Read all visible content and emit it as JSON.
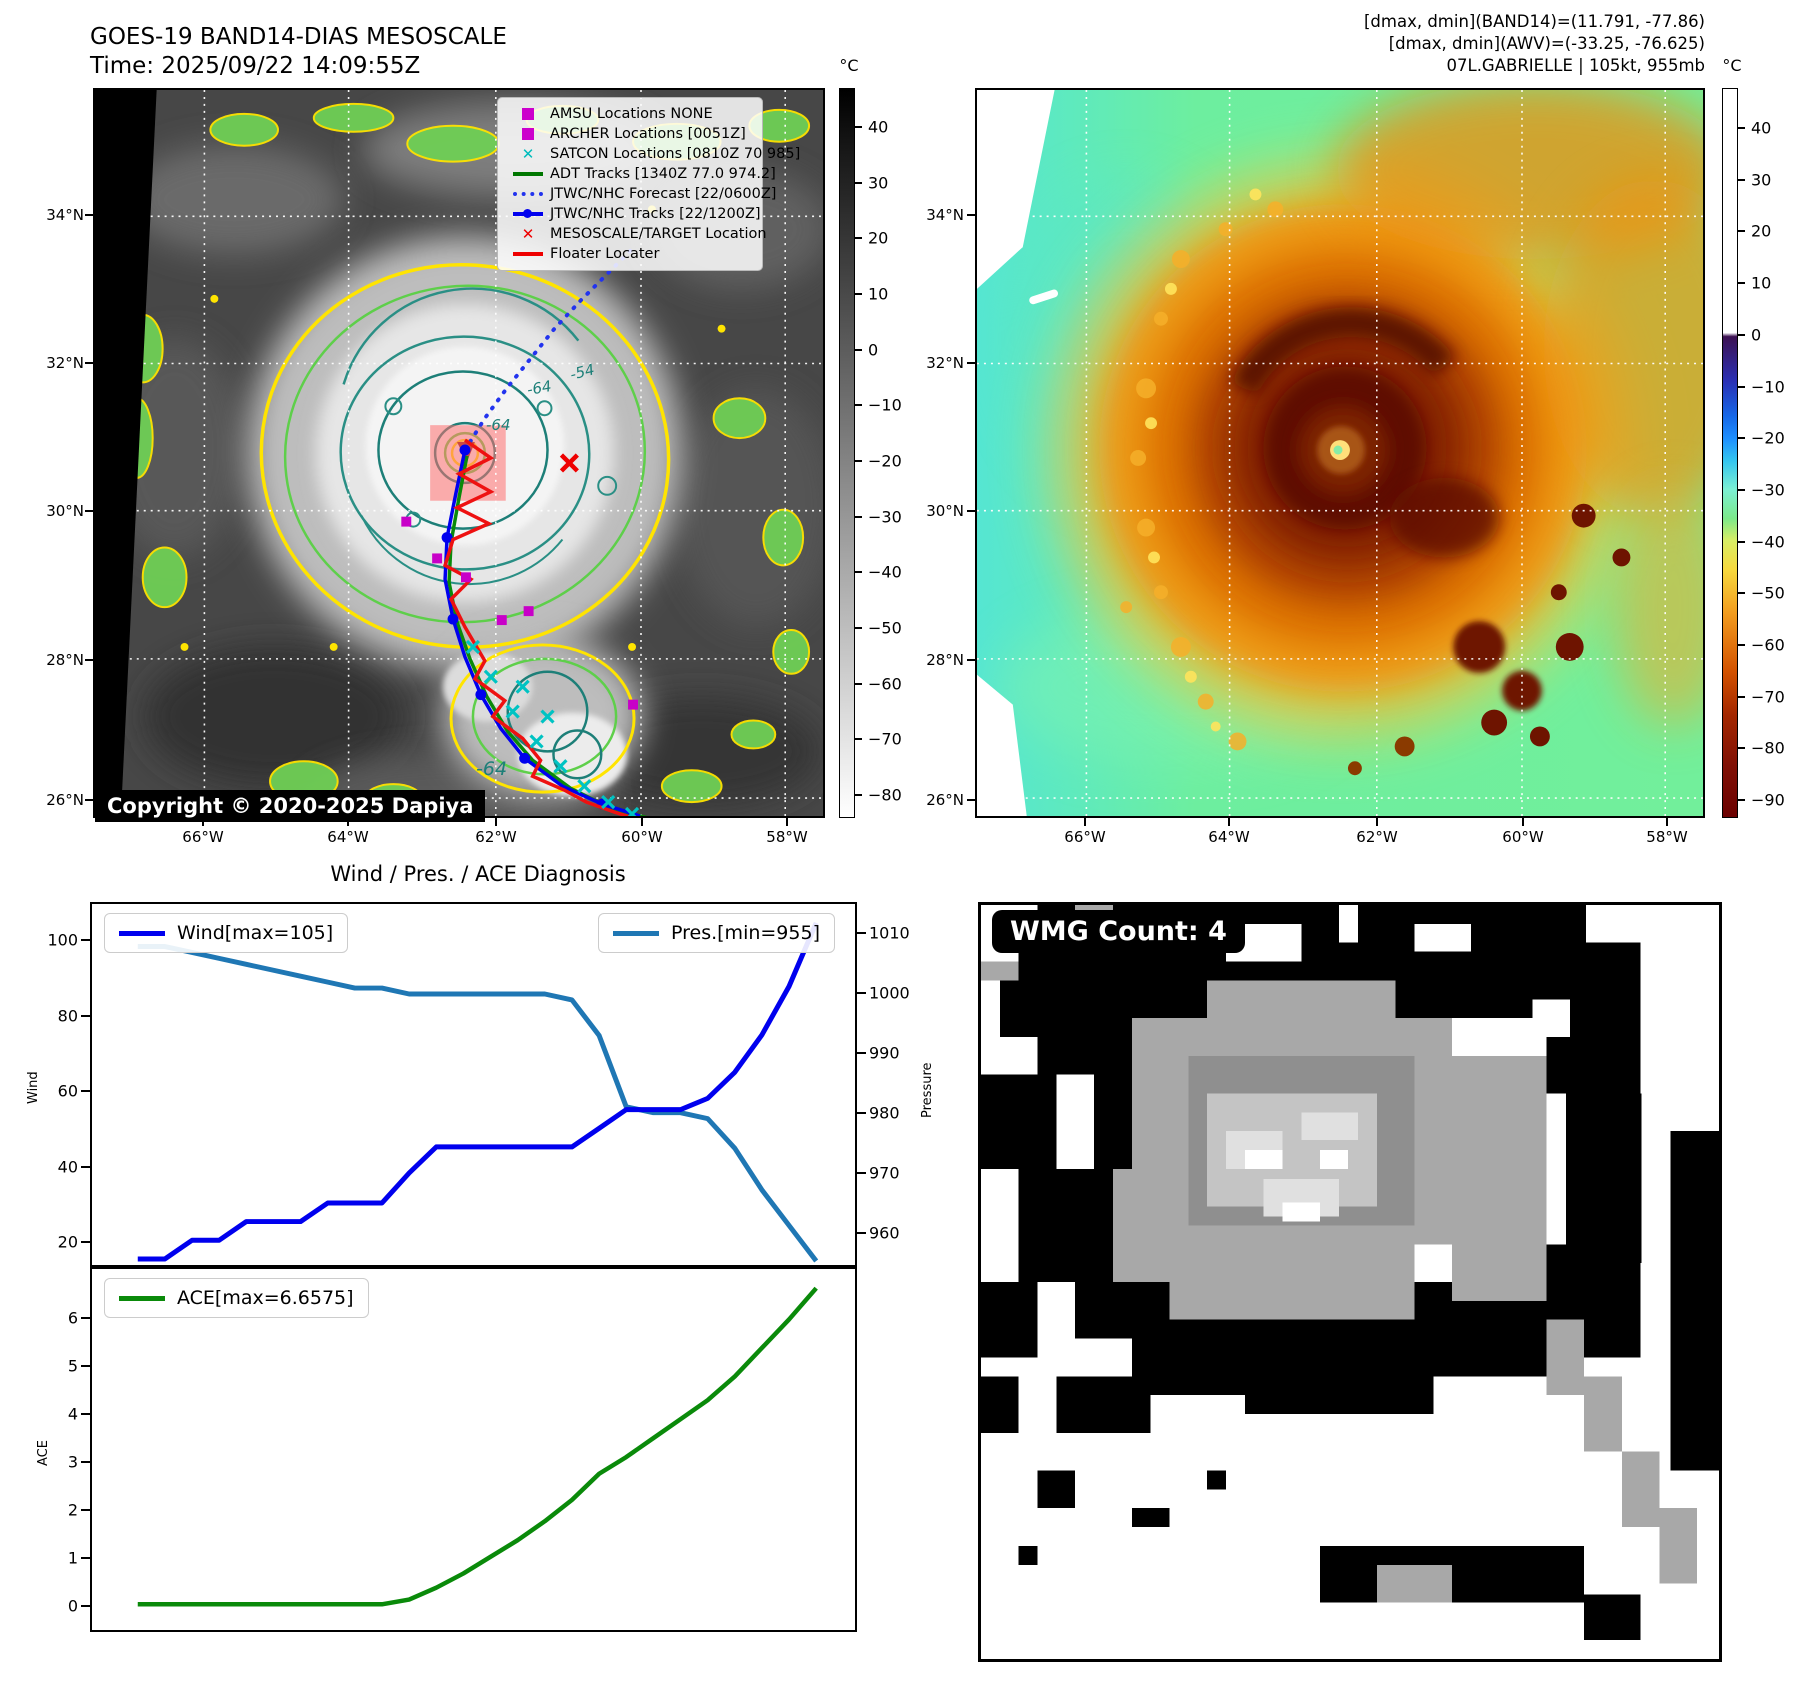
{
  "panel_tl": {
    "title_line1": "GOES-19 BAND14-DIAS MESOSCALE",
    "title_line2": "Time: 2025/09/22 14:09:55Z",
    "copyright": "Copyright © 2020-2025 Dapiya",
    "lat_ticks": [
      "34°N",
      "32°N",
      "30°N",
      "28°N",
      "26°N"
    ],
    "lon_ticks": [
      "66°W",
      "64°W",
      "62°W",
      "60°W",
      "58°W"
    ],
    "colorbar": {
      "unit": "°C",
      "ticks": [
        "40",
        "30",
        "20",
        "10",
        "0",
        "−10",
        "−20",
        "−30",
        "−40",
        "−50",
        "−60",
        "−70",
        "−80"
      ]
    },
    "map_labels": [
      "-64",
      "-64",
      "-54",
      "-64"
    ],
    "legend": [
      {
        "marker": "square",
        "color": "#cc00cc",
        "label": "AMSU Locations NONE"
      },
      {
        "marker": "square",
        "color": "#cc00cc",
        "label": "ARCHER Locations [0051Z]"
      },
      {
        "marker": "x",
        "color": "#00bcbc",
        "label": "SATCON Locations [0810Z 70 985]"
      },
      {
        "marker": "line",
        "color": "#007700",
        "label": "ADT Tracks [1340Z 77.0 974.2]"
      },
      {
        "marker": "dotted-line",
        "color": "#2233ee",
        "label": "JTWC/NHC Forecast [22/0600Z]"
      },
      {
        "marker": "line-dot",
        "color": "#0000ee",
        "label": "JTWC/NHC Tracks [22/1200Z]"
      },
      {
        "marker": "x",
        "color": "#ee0000",
        "label": "MESOSCALE/TARGET Location"
      },
      {
        "marker": "line",
        "color": "#ee0000",
        "label": "Floater Locater"
      }
    ]
  },
  "panel_tr": {
    "header_line1": "[dmax, dmin](BAND14)=(11.791, -77.86)",
    "header_line2": "[dmax, dmin](AWV)=(-33.25, -76.625)",
    "header_line3": "07L.GABRIELLE | 105kt, 955mb",
    "lat_ticks": [
      "34°N",
      "32°N",
      "30°N",
      "28°N",
      "26°N"
    ],
    "lon_ticks": [
      "66°W",
      "64°W",
      "62°W",
      "60°W",
      "58°W"
    ],
    "colorbar": {
      "unit": "°C",
      "ticks": [
        "40",
        "30",
        "20",
        "10",
        "0",
        "−10",
        "−20",
        "−30",
        "−40",
        "−50",
        "−60",
        "−70",
        "−80",
        "−90"
      ]
    }
  },
  "panel_wmg": {
    "label": "WMG Count: 4"
  },
  "chart_data": [
    {
      "type": "line",
      "id": "wind_pres",
      "title": "Wind / Pres. / ACE Diagnosis",
      "x": [
        0,
        1,
        2,
        3,
        4,
        5,
        6,
        7,
        8,
        9,
        10,
        11,
        12,
        13,
        14,
        15,
        16,
        17,
        18,
        19,
        20,
        21,
        22,
        23,
        24,
        25
      ],
      "series": [
        {
          "name": "Wind[max=105]",
          "axis": "left",
          "color": "#0000ee",
          "values": [
            15,
            15,
            20,
            20,
            25,
            25,
            25,
            30,
            30,
            30,
            38,
            45,
            45,
            45,
            45,
            45,
            45,
            50,
            55,
            55,
            55,
            58,
            65,
            75,
            88,
            105
          ]
        },
        {
          "name": "Pres.[min=955]",
          "axis": "right",
          "color": "#1f77b4",
          "values": [
            1008,
            1008,
            1007,
            1006,
            1005,
            1004,
            1003,
            1002,
            1001,
            1001,
            1000,
            1000,
            1000,
            1000,
            1000,
            1000,
            999,
            993,
            981,
            980,
            980,
            979,
            974,
            967,
            961,
            955
          ]
        }
      ],
      "left_axis": {
        "label": "Wind",
        "ticks": [
          20,
          40,
          60,
          80,
          100
        ],
        "range": [
          13,
          110
        ]
      },
      "right_axis": {
        "label": "Pressure",
        "ticks": [
          960,
          970,
          980,
          990,
          1000,
          1010
        ],
        "range": [
          954,
          1015
        ]
      },
      "grid": false,
      "legend_position": "upper-left and upper-right"
    },
    {
      "type": "line",
      "id": "ace",
      "x": [
        0,
        1,
        2,
        3,
        4,
        5,
        6,
        7,
        8,
        9,
        10,
        11,
        12,
        13,
        14,
        15,
        16,
        17,
        18,
        19,
        20,
        21,
        22,
        23,
        24,
        25
      ],
      "series": [
        {
          "name": "ACE[max=6.6575]",
          "axis": "left",
          "color": "#0a8a0a",
          "values": [
            0,
            0,
            0,
            0,
            0,
            0,
            0,
            0,
            0,
            0,
            0.1,
            0.35,
            0.65,
            1.0,
            1.35,
            1.75,
            2.2,
            2.75,
            3.1,
            3.5,
            3.9,
            4.3,
            4.8,
            5.4,
            6.0,
            6.6575
          ]
        }
      ],
      "left_axis": {
        "label": "ACE",
        "ticks": [
          0,
          1,
          2,
          3,
          4,
          5,
          6
        ],
        "range": [
          -0.5,
          7.1
        ]
      },
      "grid": false,
      "legend_position": "upper-left"
    }
  ]
}
